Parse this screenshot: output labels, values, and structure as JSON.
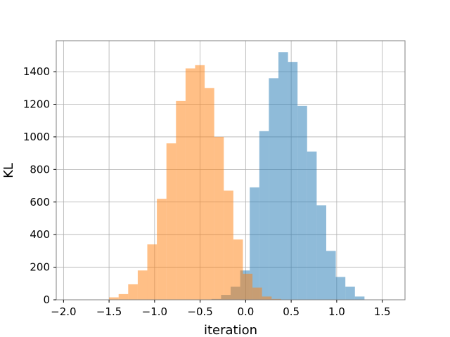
{
  "chart_data": {
    "type": "bar",
    "title": "",
    "xlabel": "iteration",
    "ylabel": "KL",
    "xlim": [
      -2.08,
      1.75
    ],
    "ylim": [
      0,
      1590
    ],
    "grid": true,
    "legend": "none",
    "x_ticks": [
      -2.0,
      -1.5,
      -1.0,
      -0.5,
      0.0,
      0.5,
      1.0,
      1.5
    ],
    "x_tick_labels": [
      "−2.0",
      "−1.5",
      "−1.0",
      "−0.5",
      "0.0",
      "0.5",
      "1.0",
      "1.5"
    ],
    "y_ticks": [
      0,
      200,
      400,
      600,
      800,
      1000,
      1200,
      1400
    ],
    "y_tick_labels": [
      "0",
      "200",
      "400",
      "600",
      "800",
      "1000",
      "1200",
      "1400"
    ],
    "bin_width": 0.105,
    "series": [
      {
        "color": "#1f77b4",
        "alpha": 0.5,
        "bin_lefts": [
          -0.48,
          -0.375,
          -0.27,
          -0.165,
          -0.06,
          0.045,
          0.15,
          0.255,
          0.36,
          0.465,
          0.57,
          0.675,
          0.78,
          0.885,
          0.99,
          1.095,
          1.2
        ],
        "counts": [
          2,
          5,
          30,
          80,
          180,
          690,
          1035,
          1360,
          1520,
          1460,
          1190,
          910,
          580,
          300,
          140,
          80,
          20
        ]
      },
      {
        "color": "#ff7f0e",
        "alpha": 0.5,
        "bin_lefts": [
          -1.5,
          -1.395,
          -1.29,
          -1.185,
          -1.08,
          -0.975,
          -0.87,
          -0.765,
          -0.66,
          -0.555,
          -0.45,
          -0.345,
          -0.24,
          -0.135,
          -0.03,
          0.075,
          0.18,
          0.285
        ],
        "counts": [
          15,
          35,
          95,
          180,
          340,
          620,
          960,
          1220,
          1420,
          1440,
          1300,
          1000,
          670,
          370,
          160,
          75,
          20,
          5
        ]
      }
    ]
  }
}
